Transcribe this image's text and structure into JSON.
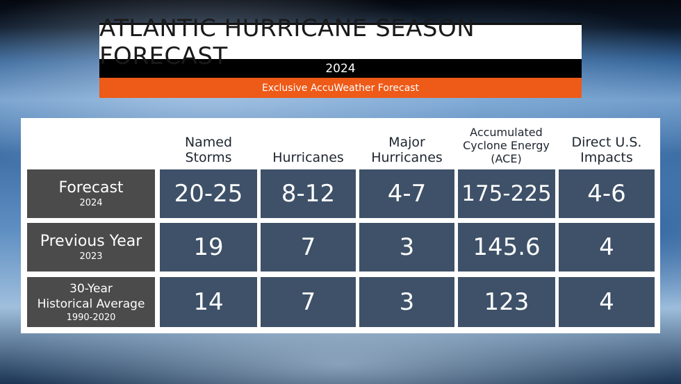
{
  "banner": {
    "title": "ATLANTIC HURRICANE SEASON FORECAST",
    "year": "2024",
    "subtitle": "Exclusive AccuWeather Forecast"
  },
  "table": {
    "headers": [
      [
        "Named",
        "Storms"
      ],
      [
        "Hurricanes"
      ],
      [
        "Major",
        "Hurricanes"
      ],
      [
        "Accumulated",
        "Cyclone Energy",
        "(ACE)"
      ],
      [
        "Direct U.S.",
        "Impacts"
      ]
    ],
    "rows": [
      {
        "label_lines": [
          "Forecast"
        ],
        "sub_lines": [
          "2024"
        ],
        "values": [
          "20-25",
          "8-12",
          "4-7",
          "175-225",
          "4-6"
        ]
      },
      {
        "label_lines": [
          "Previous Year"
        ],
        "sub_lines": [
          "2023"
        ],
        "values": [
          "19",
          "7",
          "3",
          "145.6",
          "4"
        ]
      },
      {
        "label_lines": [
          "30-Year",
          "Historical Average"
        ],
        "sub_lines": [
          "1990-2020"
        ],
        "values": [
          "14",
          "7",
          "3",
          "123",
          "4"
        ]
      }
    ]
  }
}
